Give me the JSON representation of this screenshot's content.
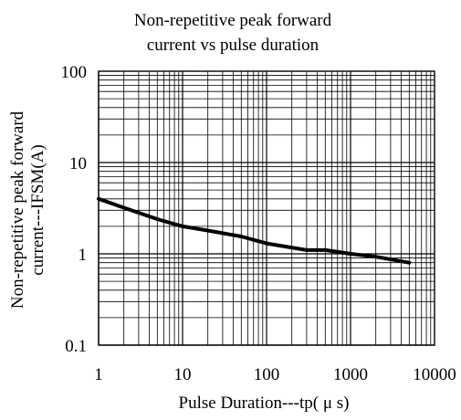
{
  "chart_data": {
    "type": "line",
    "title_lines": [
      "Non-repetitive peak forward",
      "current vs pulse duration"
    ],
    "xlabel": "Pulse Duration---tp( μ s)",
    "ylabel_lines": [
      "Non-repetitive peak forward",
      "current---IFSM(A)"
    ],
    "x_scale": "log",
    "y_scale": "log",
    "xlim": [
      1,
      10000
    ],
    "ylim": [
      0.1,
      100
    ],
    "x_ticks": [
      1,
      10,
      100,
      1000,
      10000
    ],
    "x_tick_labels": [
      "1",
      "10",
      "100",
      "1000",
      "10000"
    ],
    "y_ticks": [
      0.1,
      1,
      10,
      100
    ],
    "y_tick_labels": [
      "0.1",
      "1",
      "10",
      "100"
    ],
    "grid": true,
    "legend": "none",
    "line_color": "#000000",
    "series": [
      {
        "x": [
          1,
          2,
          5,
          10,
          20,
          50,
          100,
          300,
          500,
          1000,
          2000,
          5000
        ],
        "y": [
          4.0,
          3.2,
          2.4,
          2.0,
          1.8,
          1.55,
          1.3,
          1.1,
          1.1,
          1.0,
          0.93,
          0.8
        ]
      }
    ]
  }
}
